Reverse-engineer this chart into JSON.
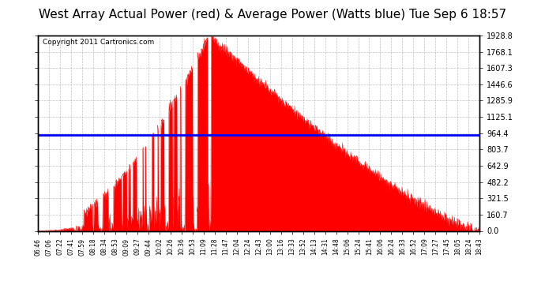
{
  "title": "West Array Actual Power (red) & Average Power (Watts blue) Tue Sep 6 18:57",
  "copyright": "Copyright 2011 Cartronics.com",
  "average_power": 943.54,
  "y_ticks": [
    0.0,
    160.7,
    321.5,
    482.2,
    642.9,
    803.7,
    964.4,
    1125.1,
    1285.9,
    1446.6,
    1607.3,
    1768.1,
    1928.8
  ],
  "ylim": [
    0,
    1928.8
  ],
  "x_labels": [
    "06:46",
    "07:06",
    "07:22",
    "07:41",
    "07:59",
    "08:18",
    "08:34",
    "08:53",
    "09:09",
    "09:27",
    "09:44",
    "10:02",
    "10:26",
    "10:36",
    "10:53",
    "11:09",
    "11:28",
    "11:47",
    "12:04",
    "12:24",
    "12:43",
    "13:00",
    "13:16",
    "13:33",
    "13:52",
    "14:13",
    "14:31",
    "14:48",
    "15:06",
    "15:24",
    "15:41",
    "16:06",
    "16:24",
    "16:33",
    "16:52",
    "17:09",
    "17:27",
    "17:45",
    "18:05",
    "18:24",
    "18:43"
  ],
  "title_fontsize": 11,
  "bg_color": "#ffffff",
  "plot_bg_color": "#ffffff",
  "red_color": "#ff0000",
  "blue_color": "#0000ff",
  "grid_color": "#aaaaaa"
}
